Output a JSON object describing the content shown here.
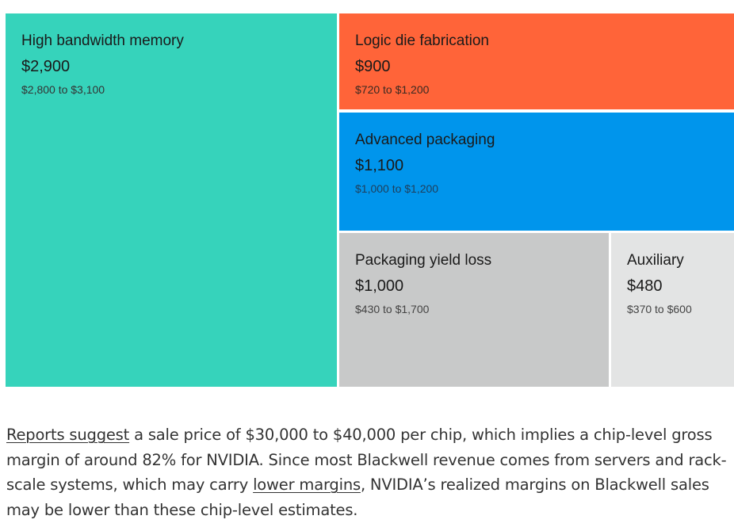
{
  "chart_data": {
    "type": "treemap",
    "value_prefix": "$",
    "items": [
      {
        "label": "High bandwidth memory",
        "value": 2900,
        "value_text": "$2,900",
        "range_text": "$2,800 to $3,100",
        "color": "#36D3BB"
      },
      {
        "label": "Logic die fabrication",
        "value": 900,
        "value_text": "$900",
        "range_text": "$720 to $1,200",
        "color": "#FF6439"
      },
      {
        "label": "Advanced packaging",
        "value": 1100,
        "value_text": "$1,100",
        "range_text": "$1,000 to $1,200",
        "color": "#0095EC"
      },
      {
        "label": "Packaging yield loss",
        "value": 1000,
        "value_text": "$1,000",
        "range_text": "$430 to $1,700",
        "color": "#C8C9C9"
      },
      {
        "label": "Auxiliary",
        "value": 480,
        "value_text": "$480",
        "range_text": "$370 to $600",
        "color": "#E3E4E4"
      }
    ]
  },
  "paragraph": {
    "link1": "Reports suggest",
    "text1": " a sale price of $30,000 to $40,000 per chip, which implies a chip-level gross margin of around 82% for NVIDIA. Since most Blackwell revenue comes from servers and rack-scale systems, which may carry ",
    "link2": "lower margins",
    "text2": ", NVIDIA’s realized margins on Blackwell sales may be lower than these chip-level estimates."
  }
}
